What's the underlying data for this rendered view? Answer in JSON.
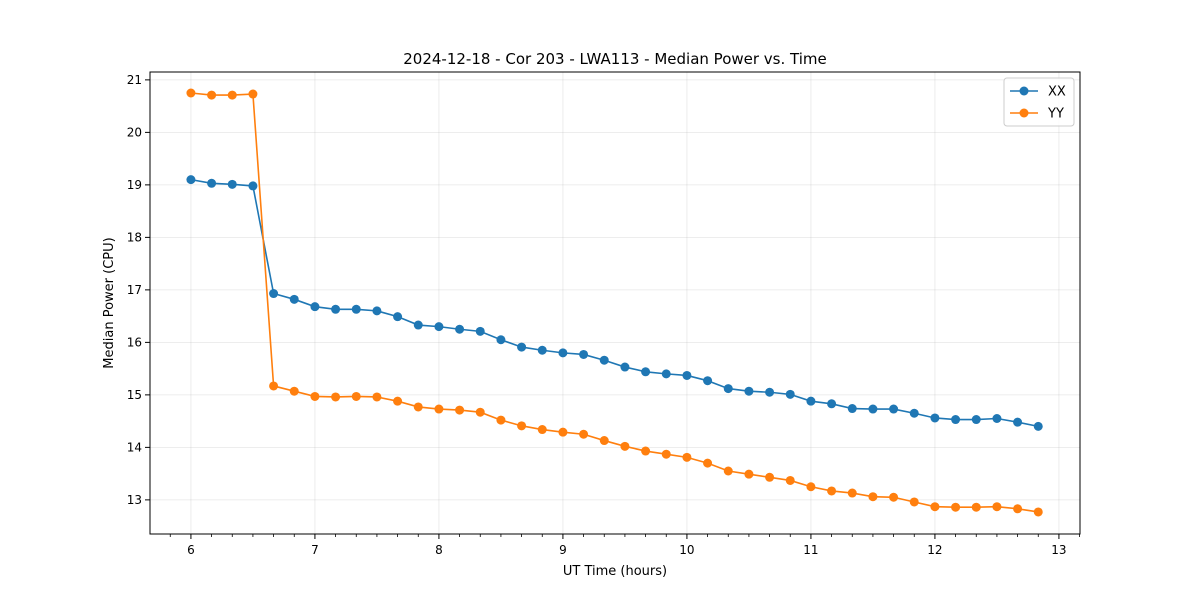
{
  "chart_data": {
    "type": "line",
    "title": "2024-12-18 - Cor 203 - LWA113 - Median Power vs. Time",
    "xlabel": "UT Time (hours)",
    "ylabel": "Median Power (CPU)",
    "xlim": [
      5.67,
      13.17
    ],
    "ylim": [
      12.35,
      21.15
    ],
    "xticks": [
      6,
      7,
      8,
      9,
      10,
      11,
      12,
      13
    ],
    "yticks": [
      13,
      14,
      15,
      16,
      17,
      18,
      19,
      20,
      21
    ],
    "grid": true,
    "legend_position": "top-right",
    "x": [
      6.0,
      6.1667,
      6.3333,
      6.5,
      6.6667,
      6.8333,
      7.0,
      7.1667,
      7.3333,
      7.5,
      7.6667,
      7.8333,
      8.0,
      8.1667,
      8.3333,
      8.5,
      8.6667,
      8.8333,
      9.0,
      9.1667,
      9.3333,
      9.5,
      9.6667,
      9.8333,
      10.0,
      10.1667,
      10.3333,
      10.5,
      10.6667,
      10.8333,
      11.0,
      11.1667,
      11.3333,
      11.5,
      11.6667,
      11.8333,
      12.0,
      12.1667,
      12.3333,
      12.5,
      12.6667,
      12.8333
    ],
    "series": [
      {
        "name": "XX",
        "color": "#1f77b4",
        "values": [
          19.1,
          19.03,
          19.01,
          18.98,
          16.93,
          16.82,
          16.68,
          16.63,
          16.63,
          16.6,
          16.49,
          16.33,
          16.3,
          16.25,
          16.21,
          16.05,
          15.91,
          15.85,
          15.8,
          15.77,
          15.66,
          15.53,
          15.44,
          15.4,
          15.37,
          15.27,
          15.12,
          15.07,
          15.05,
          15.01,
          14.88,
          14.83,
          14.74,
          14.73,
          14.73,
          14.65,
          14.56,
          14.53,
          14.53,
          14.55,
          14.48,
          14.4
        ]
      },
      {
        "name": "YY",
        "color": "#ff7f0e",
        "values": [
          20.75,
          20.71,
          20.71,
          20.73,
          15.17,
          15.07,
          14.97,
          14.96,
          14.97,
          14.96,
          14.88,
          14.77,
          14.73,
          14.71,
          14.67,
          14.52,
          14.41,
          14.34,
          14.29,
          14.25,
          14.13,
          14.02,
          13.93,
          13.87,
          13.81,
          13.7,
          13.55,
          13.49,
          13.43,
          13.37,
          13.25,
          13.17,
          13.13,
          13.06,
          13.05,
          12.96,
          12.87,
          12.86,
          12.86,
          12.87,
          12.83,
          12.77
        ]
      }
    ]
  }
}
